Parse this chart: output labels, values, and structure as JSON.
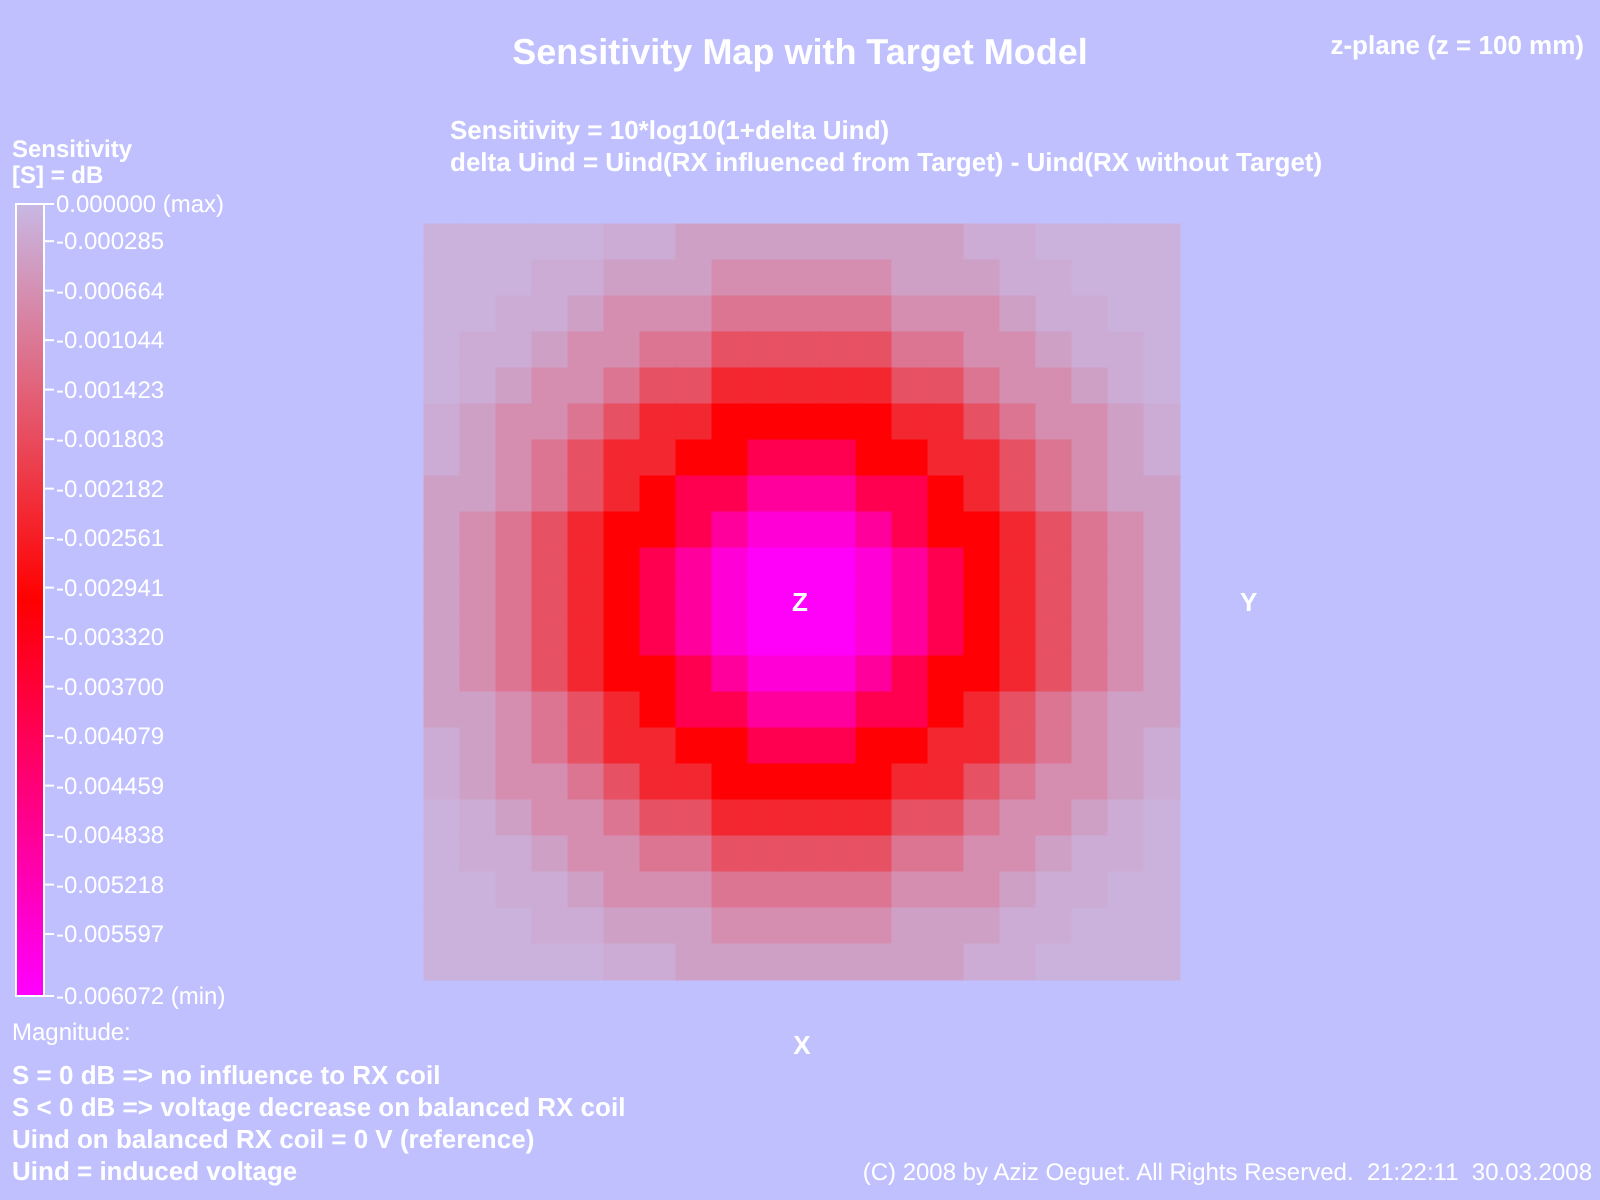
{
  "chart_data": {
    "type": "heatmap",
    "title": "Sensitivity Map with Target Model",
    "subtitle": "Sensitivity = 10*log10(1+delta Uind)\ndelta Uind = Uind(RX influenced from Target) - Uind(RX without Target)",
    "xlabel": "X",
    "ylabel": "Y",
    "clabel": "Sensitivity\n[S] = dB",
    "annotations": [
      "Z",
      "z-plane (z = 100 mm)",
      "Magnitude:",
      "S = 0 dB => no influence to RX coil",
      "S < 0 dB => voltage decrease on balanced RX coil",
      "Uind on balanced RX coil = 0 V (reference)",
      "Uind = induced voltage",
      "(C) 2008 by Aziz Oeguet. All Rights Reserved.  21:22:11  30.03.2008"
    ],
    "categories": [
      null,
      null,
      null,
      null,
      null,
      null,
      null,
      null,
      null,
      null,
      null,
      null,
      null,
      null,
      null,
      null,
      null,
      null,
      null,
      null,
      null
    ],
    "y_categories": [
      null,
      null,
      null,
      null,
      null,
      null,
      null,
      null,
      null,
      null,
      null,
      null,
      null,
      null,
      null,
      null,
      null,
      null,
      null,
      null,
      null
    ],
    "clim": [
      -0.006072,
      0
    ],
    "cticks": [
      {
        "value": 0,
        "label": "0.000000 (max)"
      },
      {
        "value": -0.000285,
        "label": "-0.000285"
      },
      {
        "value": -0.000664,
        "label": "-0.000664"
      },
      {
        "value": -0.001044,
        "label": "-0.001044"
      },
      {
        "value": -0.001423,
        "label": "-0.001423"
      },
      {
        "value": -0.001803,
        "label": "-0.001803"
      },
      {
        "value": -0.002182,
        "label": "-0.002182"
      },
      {
        "value": -0.002561,
        "label": "-0.002561"
      },
      {
        "value": -0.002941,
        "label": "-0.002941"
      },
      {
        "value": -0.00332,
        "label": "-0.003320"
      },
      {
        "value": -0.0037,
        "label": "-0.003700"
      },
      {
        "value": -0.004079,
        "label": "-0.004079"
      },
      {
        "value": -0.004459,
        "label": "-0.004459"
      },
      {
        "value": -0.004838,
        "label": "-0.004838"
      },
      {
        "value": -0.005218,
        "label": "-0.005218"
      },
      {
        "value": -0.005597,
        "label": "-0.005597"
      },
      {
        "value": -0.006072,
        "label": "-0.006072 (min)"
      }
    ],
    "cells": [
      [
        -0.0001,
        -0.0001,
        -0.0001,
        -0.0001,
        -0.0001,
        -0.0002,
        -0.0002,
        -0.0004,
        -0.0004,
        -0.0004,
        -0.0004,
        -0.0004,
        -0.0004,
        -0.0004,
        -0.0004,
        -0.0002,
        -0.0002,
        -0.0001,
        -0.0001,
        -0.0001,
        -0.0001
      ],
      [
        -0.0001,
        -0.0001,
        -0.0001,
        -0.0002,
        -0.0002,
        -0.0004,
        -0.0004,
        -0.0004,
        -0.0007,
        -0.0007,
        -0.0007,
        -0.0007,
        -0.0007,
        -0.0004,
        -0.0004,
        -0.0004,
        -0.0002,
        -0.0002,
        -0.0001,
        -0.0001,
        -0.0001
      ],
      [
        -0.0001,
        -0.0001,
        -0.0002,
        -0.0002,
        -0.0004,
        -0.0007,
        -0.0007,
        -0.0007,
        -0.0011,
        -0.0011,
        -0.0011,
        -0.0011,
        -0.0011,
        -0.0007,
        -0.0007,
        -0.0007,
        -0.0004,
        -0.0002,
        -0.0002,
        -0.0001,
        -0.0001
      ],
      [
        -0.0001,
        -0.0002,
        -0.0002,
        -0.0004,
        -0.0007,
        -0.0007,
        -0.0011,
        -0.0011,
        -0.0017,
        -0.0017,
        -0.0017,
        -0.0017,
        -0.0017,
        -0.0011,
        -0.0011,
        -0.0007,
        -0.0007,
        -0.0004,
        -0.0002,
        -0.0002,
        -0.0001
      ],
      [
        -0.0001,
        -0.0002,
        -0.0004,
        -0.0007,
        -0.0007,
        -0.0011,
        -0.0017,
        -0.0017,
        -0.0024,
        -0.0024,
        -0.0024,
        -0.0024,
        -0.0024,
        -0.0017,
        -0.0017,
        -0.0011,
        -0.0007,
        -0.0007,
        -0.0004,
        -0.0002,
        -0.0001
      ],
      [
        -0.0002,
        -0.0004,
        -0.0007,
        -0.0007,
        -0.0011,
        -0.0017,
        -0.0024,
        -0.0024,
        -0.0031,
        -0.0031,
        -0.0031,
        -0.0031,
        -0.0031,
        -0.0024,
        -0.0024,
        -0.0017,
        -0.0011,
        -0.0007,
        -0.0007,
        -0.0004,
        -0.0002
      ],
      [
        -0.0002,
        -0.0004,
        -0.0007,
        -0.0011,
        -0.0017,
        -0.0024,
        -0.0024,
        -0.0031,
        -0.0031,
        -0.004,
        -0.004,
        -0.004,
        -0.0031,
        -0.0031,
        -0.0024,
        -0.0024,
        -0.0017,
        -0.0011,
        -0.0007,
        -0.0004,
        -0.0002
      ],
      [
        -0.0004,
        -0.0004,
        -0.0007,
        -0.0011,
        -0.0017,
        -0.0024,
        -0.0031,
        -0.004,
        -0.004,
        -0.0049,
        -0.0049,
        -0.0049,
        -0.004,
        -0.004,
        -0.0031,
        -0.0024,
        -0.0017,
        -0.0011,
        -0.0007,
        -0.0004,
        -0.0004
      ],
      [
        -0.0004,
        -0.0007,
        -0.0011,
        -0.0017,
        -0.0024,
        -0.0031,
        -0.0031,
        -0.004,
        -0.0049,
        -0.0056,
        -0.0056,
        -0.0056,
        -0.0049,
        -0.004,
        -0.0031,
        -0.0031,
        -0.0024,
        -0.0017,
        -0.0011,
        -0.0007,
        -0.0004
      ],
      [
        -0.0004,
        -0.0007,
        -0.0011,
        -0.0017,
        -0.0024,
        -0.0031,
        -0.004,
        -0.0049,
        -0.0056,
        -0.006,
        -0.006,
        -0.006,
        -0.0056,
        -0.0049,
        -0.004,
        -0.0031,
        -0.0024,
        -0.0017,
        -0.0011,
        -0.0007,
        -0.0004
      ],
      [
        -0.0004,
        -0.0007,
        -0.0011,
        -0.0017,
        -0.0024,
        -0.0031,
        -0.004,
        -0.0049,
        -0.0056,
        -0.006,
        -0.006,
        -0.006,
        -0.0056,
        -0.0049,
        -0.004,
        -0.0031,
        -0.0024,
        -0.0017,
        -0.0011,
        -0.0007,
        -0.0004
      ],
      [
        -0.0004,
        -0.0007,
        -0.0011,
        -0.0017,
        -0.0024,
        -0.0031,
        -0.004,
        -0.0049,
        -0.0056,
        -0.006,
        -0.006,
        -0.006,
        -0.0056,
        -0.0049,
        -0.004,
        -0.0031,
        -0.0024,
        -0.0017,
        -0.0011,
        -0.0007,
        -0.0004
      ],
      [
        -0.0004,
        -0.0007,
        -0.0011,
        -0.0017,
        -0.0024,
        -0.0031,
        -0.0031,
        -0.004,
        -0.0049,
        -0.0056,
        -0.0056,
        -0.0056,
        -0.0049,
        -0.004,
        -0.0031,
        -0.0031,
        -0.0024,
        -0.0017,
        -0.0011,
        -0.0007,
        -0.0004
      ],
      [
        -0.0004,
        -0.0004,
        -0.0007,
        -0.0011,
        -0.0017,
        -0.0024,
        -0.0031,
        -0.004,
        -0.004,
        -0.0049,
        -0.0049,
        -0.0049,
        -0.004,
        -0.004,
        -0.0031,
        -0.0024,
        -0.0017,
        -0.0011,
        -0.0007,
        -0.0004,
        -0.0004
      ],
      [
        -0.0002,
        -0.0004,
        -0.0007,
        -0.0011,
        -0.0017,
        -0.0024,
        -0.0024,
        -0.0031,
        -0.0031,
        -0.004,
        -0.004,
        -0.004,
        -0.0031,
        -0.0031,
        -0.0024,
        -0.0024,
        -0.0017,
        -0.0011,
        -0.0007,
        -0.0004,
        -0.0002
      ],
      [
        -0.0002,
        -0.0004,
        -0.0007,
        -0.0007,
        -0.0011,
        -0.0017,
        -0.0024,
        -0.0024,
        -0.0031,
        -0.0031,
        -0.0031,
        -0.0031,
        -0.0031,
        -0.0024,
        -0.0024,
        -0.0017,
        -0.0011,
        -0.0007,
        -0.0007,
        -0.0004,
        -0.0002
      ],
      [
        -0.0001,
        -0.0002,
        -0.0004,
        -0.0007,
        -0.0007,
        -0.0011,
        -0.0017,
        -0.0017,
        -0.0024,
        -0.0024,
        -0.0024,
        -0.0024,
        -0.0024,
        -0.0017,
        -0.0017,
        -0.0011,
        -0.0007,
        -0.0007,
        -0.0004,
        -0.0002,
        -0.0001
      ],
      [
        -0.0001,
        -0.0002,
        -0.0002,
        -0.0004,
        -0.0007,
        -0.0007,
        -0.0011,
        -0.0011,
        -0.0017,
        -0.0017,
        -0.0017,
        -0.0017,
        -0.0017,
        -0.0011,
        -0.0011,
        -0.0007,
        -0.0007,
        -0.0004,
        -0.0002,
        -0.0002,
        -0.0001
      ],
      [
        -0.0001,
        -0.0001,
        -0.0002,
        -0.0002,
        -0.0004,
        -0.0007,
        -0.0007,
        -0.0007,
        -0.0011,
        -0.0011,
        -0.0011,
        -0.0011,
        -0.0011,
        -0.0007,
        -0.0007,
        -0.0007,
        -0.0004,
        -0.0002,
        -0.0002,
        -0.0001,
        -0.0001
      ],
      [
        -0.0001,
        -0.0001,
        -0.0001,
        -0.0002,
        -0.0002,
        -0.0004,
        -0.0004,
        -0.0004,
        -0.0007,
        -0.0007,
        -0.0007,
        -0.0007,
        -0.0007,
        -0.0004,
        -0.0004,
        -0.0004,
        -0.0002,
        -0.0002,
        -0.0001,
        -0.0001,
        -0.0001
      ],
      [
        -0.0001,
        -0.0001,
        -0.0001,
        -0.0001,
        -0.0001,
        -0.0002,
        -0.0002,
        -0.0004,
        -0.0004,
        -0.0004,
        -0.0004,
        -0.0004,
        -0.0004,
        -0.0004,
        -0.0004,
        -0.0002,
        -0.0002,
        -0.0001,
        -0.0001,
        -0.0001,
        -0.0001
      ]
    ]
  }
}
